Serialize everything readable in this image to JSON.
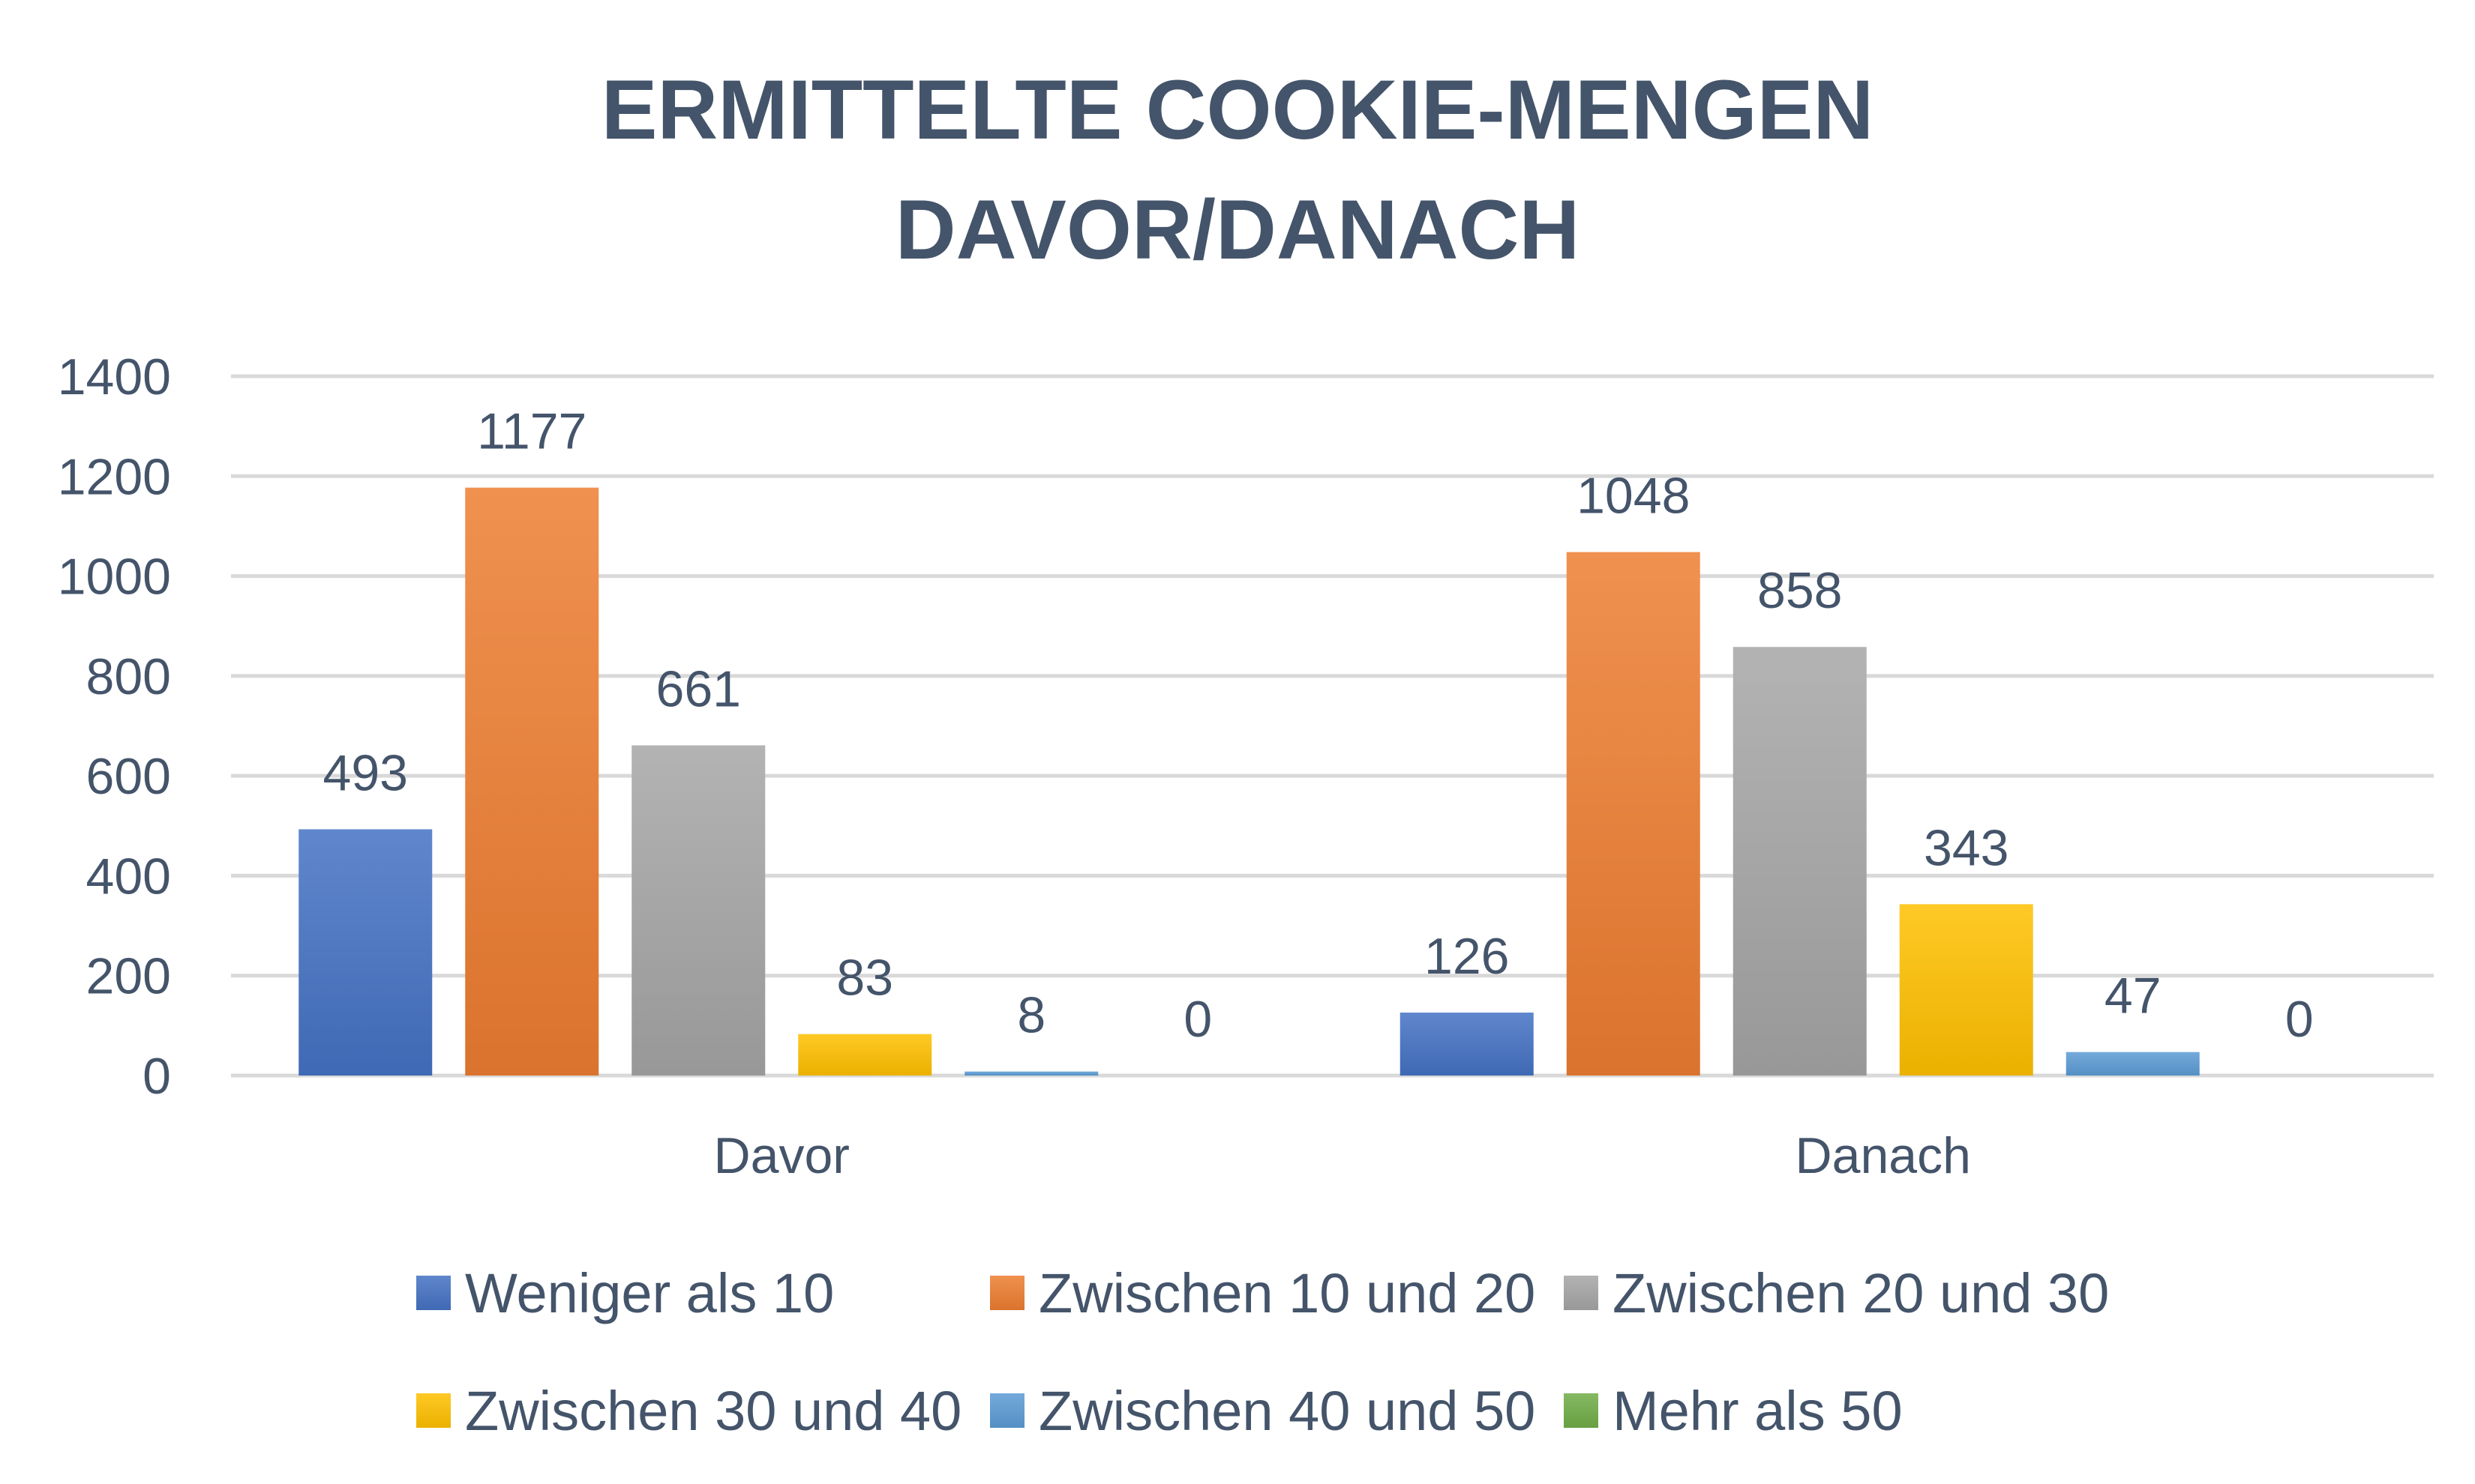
{
  "chart_data": {
    "type": "bar",
    "title_lines": [
      "ERMITTELTE COOKIE-MENGEN",
      "DAVOR/DANACH"
    ],
    "categories": [
      "Davor",
      "Danach"
    ],
    "series": [
      {
        "name": "Weniger als 10",
        "values": [
          493,
          126
        ],
        "color": "#4472c4"
      },
      {
        "name": "Zwischen 10 und 20",
        "values": [
          1177,
          1048
        ],
        "color": "#ed7d31"
      },
      {
        "name": "Zwischen 20 und 30",
        "values": [
          661,
          858
        ],
        "color": "#a5a5a5"
      },
      {
        "name": "Zwischen 30 und 40",
        "values": [
          83,
          343
        ],
        "color": "#ffc000"
      },
      {
        "name": "Zwischen 40 und 50",
        "values": [
          8,
          47
        ],
        "color": "#5b9bd5"
      },
      {
        "name": "Mehr als 50",
        "values": [
          0,
          0
        ],
        "color": "#70ad47"
      }
    ],
    "ylim": [
      0,
      1400
    ],
    "yticks": [
      "0",
      "200",
      "400",
      "600",
      "800",
      "1000",
      "1200",
      "1400"
    ],
    "grid": true,
    "legend_position": "bottom",
    "data_labels": true
  }
}
